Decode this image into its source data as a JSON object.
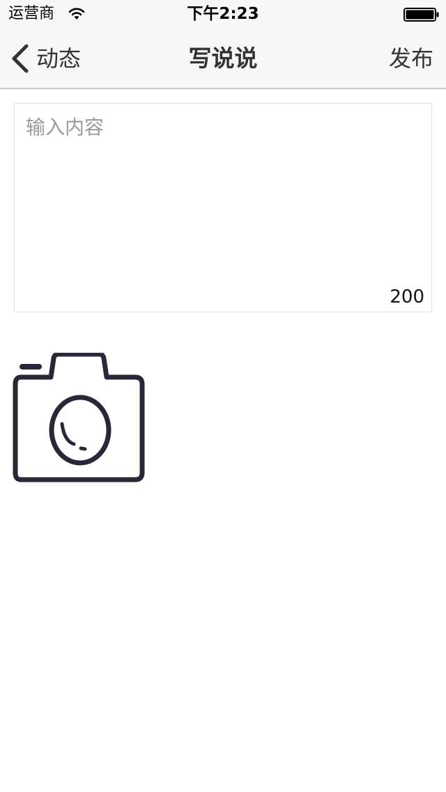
{
  "status_bar": {
    "carrier": "运营商",
    "time": "下午2:23"
  },
  "nav": {
    "back_label": "动态",
    "title": "写说说",
    "publish_label": "发布"
  },
  "editor": {
    "placeholder": "输入内容",
    "value": "",
    "char_count": "200"
  },
  "icons": {
    "wifi": "wifi-icon",
    "battery": "battery-icon",
    "back": "chevron-left-icon",
    "camera": "camera-icon"
  },
  "colors": {
    "nav_background": "#f7f7f7",
    "text_primary": "#333333",
    "placeholder": "#9a9a9a",
    "camera_stroke": "#2a2838"
  }
}
